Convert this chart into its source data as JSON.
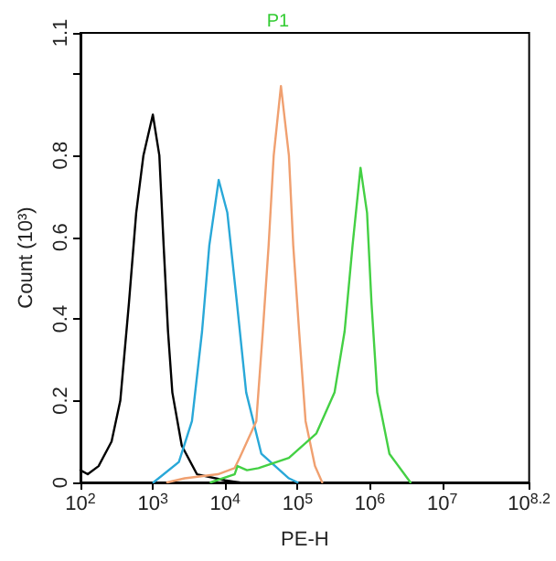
{
  "chart_data": {
    "type": "line",
    "title": "P1",
    "xlabel": "PE-H",
    "ylabel": "Count (10³)",
    "log": "x",
    "marker": "none",
    "xlim": [
      100,
      158489319
    ],
    "ylim": [
      0,
      1.1
    ],
    "xticks": [
      {
        "value": 100,
        "label": "10$^{2}$"
      },
      {
        "value": 1000,
        "label": "10$^{3}$"
      },
      {
        "value": 10000,
        "label": "10$^{4}$"
      },
      {
        "value": 100000,
        "label": "10$^{5}$"
      },
      {
        "value": 1000000,
        "label": "10$^{6}$"
      },
      {
        "value": 10000000,
        "label": "10$^{7}$"
      },
      {
        "value": 158489319,
        "label": "10$^{8.2}$"
      }
    ],
    "yticks": [
      0,
      0.2,
      0.4,
      0.6,
      0.8,
      {
        "value": 1,
        "label": null
      },
      1.1
    ],
    "series": [
      {
        "color": "#000000",
        "x": [
          100,
          126,
          178,
          269,
          355,
          468,
          589,
          741,
          1000,
          1230,
          1410,
          1620,
          1860,
          2510,
          4070,
          10000,
          15800
        ],
        "values": [
          0.03,
          0.02,
          0.04,
          0.1,
          0.2,
          0.44,
          0.66,
          0.8,
          0.9,
          0.8,
          0.58,
          0.37,
          0.22,
          0.09,
          0.02,
          0.005,
          0
        ]
      },
      {
        "color": "#29a8d8",
        "x": [
          1020,
          2290,
          3470,
          4790,
          6030,
          8130,
          10700,
          14500,
          19500,
          31600,
          75900,
          100000
        ],
        "values": [
          0,
          0.05,
          0.15,
          0.37,
          0.58,
          0.74,
          0.66,
          0.44,
          0.22,
          0.07,
          0.01,
          0
        ]
      },
      {
        "color": "#f0a070",
        "x": [
          1580,
          2750,
          7940,
          13500,
          15800,
          26900,
          33100,
          39800,
          46800,
          58900,
          75900,
          87100,
          105000,
          129000,
          174000,
          219000
        ],
        "values": [
          0,
          0.01,
          0.02,
          0.035,
          0.06,
          0.15,
          0.37,
          0.58,
          0.8,
          0.97,
          0.8,
          0.58,
          0.37,
          0.15,
          0.04,
          0
        ]
      },
      {
        "color": "#44d044",
        "x": [
          6310,
          13500,
          14800,
          20000,
          28800,
          75900,
          182000,
          324000,
          447000,
          575000,
          741000,
          912000,
          1050000,
          1260000,
          1860000,
          3630000
        ],
        "values": [
          0,
          0.02,
          0.04,
          0.03,
          0.035,
          0.06,
          0.12,
          0.22,
          0.37,
          0.58,
          0.77,
          0.66,
          0.44,
          0.22,
          0.07,
          0
        ]
      }
    ]
  }
}
